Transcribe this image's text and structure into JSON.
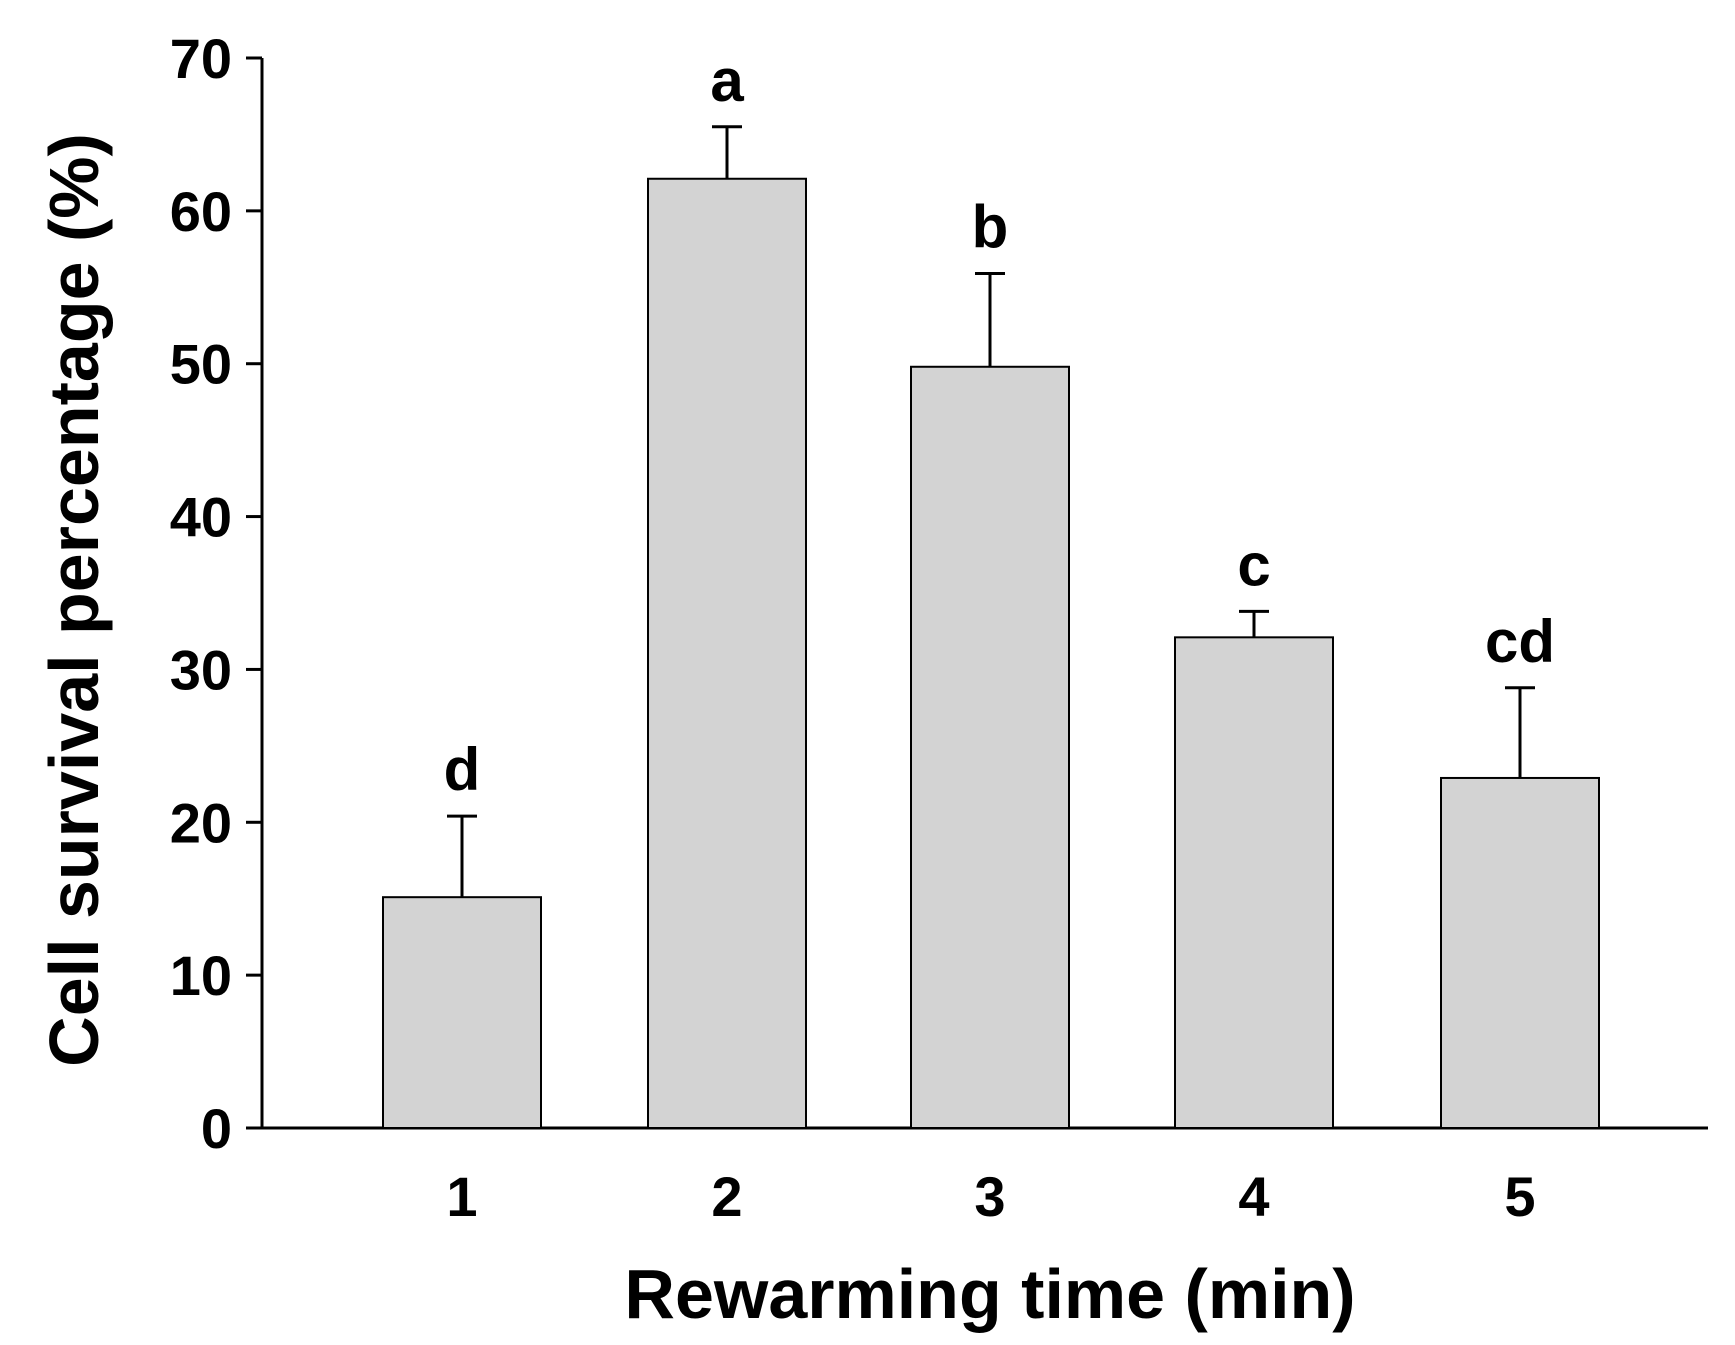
{
  "chart_data": {
    "type": "bar",
    "title": "",
    "xlabel": "Rewarming time (min)",
    "ylabel": "Cell survival percentage (%)",
    "ylim": [
      0,
      70
    ],
    "yticks": [
      0,
      10,
      20,
      30,
      40,
      50,
      60,
      70
    ],
    "grid": false,
    "legend": "none",
    "bar_color": "#d3d3d3",
    "categories": [
      "1",
      "2",
      "3",
      "4",
      "5"
    ],
    "values": [
      15.1,
      62.1,
      49.8,
      32.1,
      22.9
    ],
    "error_upper": [
      5.3,
      3.4,
      6.1,
      1.7,
      5.9
    ],
    "significance_labels": [
      "d",
      "a",
      "b",
      "c",
      "cd"
    ]
  }
}
